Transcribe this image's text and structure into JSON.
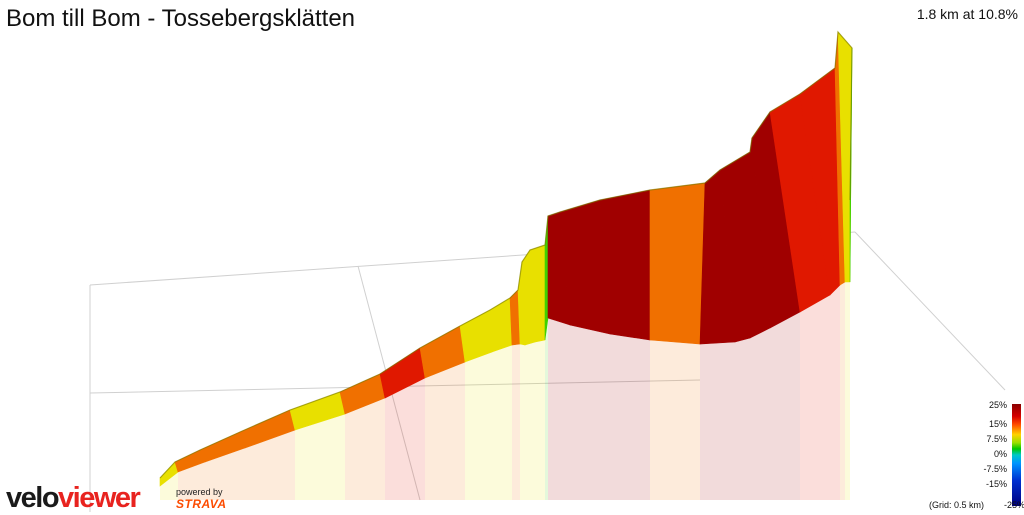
{
  "header": {
    "title": "Bom till Bom - Tossebergsklätten",
    "stat": "1.8 km at 10.8%"
  },
  "legend": {
    "labels": [
      "25%",
      "15%",
      "7.5%",
      "0%",
      "-7.5%",
      "-15%",
      "-25%"
    ],
    "grid_note": "(Grid: 0.5 km)"
  },
  "branding": {
    "logo_part1": "velo",
    "logo_part2": "viewer",
    "powered_by": "powered by",
    "strava": "STRAVA"
  },
  "colors": {
    "dark_red": "#a00000",
    "red": "#e01800",
    "orange": "#f07000",
    "yellow": "#e8e000",
    "green": "#40d000",
    "strava_orange": "#fc4c02",
    "brand_red": "#e8231f"
  }
}
